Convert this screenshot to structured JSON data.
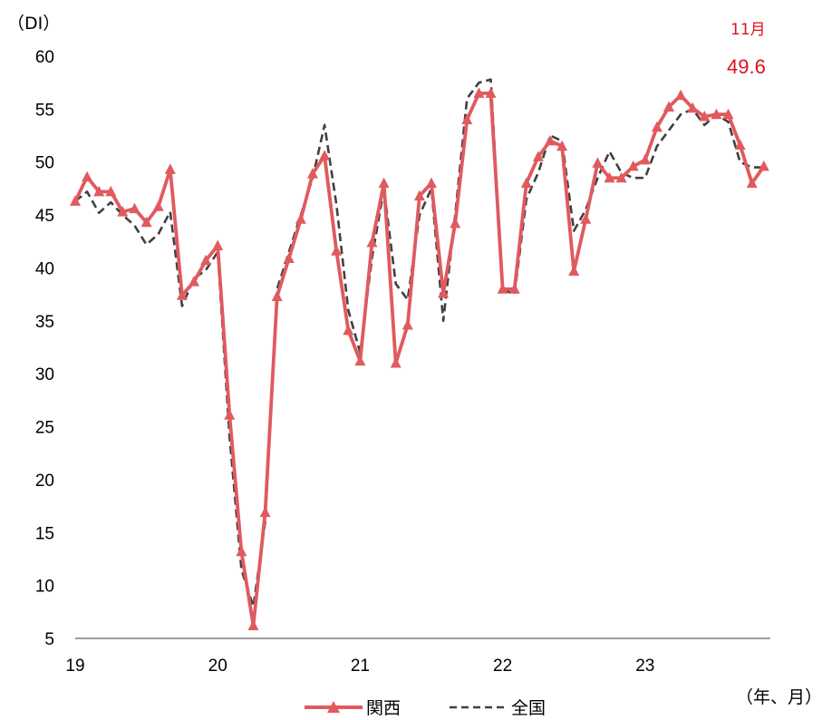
{
  "chart_data": {
    "type": "line",
    "y_unit": "（DI）",
    "x_unit": "（年、月）",
    "ylim": [
      5,
      60
    ],
    "y_ticks": [
      "5",
      "10",
      "15",
      "20",
      "25",
      "30",
      "35",
      "40",
      "45",
      "50",
      "55",
      "60"
    ],
    "x_ticks": [
      {
        "label": "19",
        "index": 0
      },
      {
        "label": "20",
        "index": 12
      },
      {
        "label": "21",
        "index": 24
      },
      {
        "label": "22",
        "index": 36
      },
      {
        "label": "23",
        "index": 48
      }
    ],
    "grid": false,
    "legend_position": "bottom",
    "annotation": {
      "month": "11月",
      "value": "49.6"
    },
    "series": [
      {
        "name": "関西",
        "color": "#e05a5e",
        "style": "solid-triangle",
        "values": [
          46.3,
          48.6,
          47.2,
          47.2,
          45.3,
          45.6,
          44.3,
          45.8,
          49.3,
          37.4,
          38.7,
          40.7,
          42.1,
          26.1,
          13.2,
          6.2,
          16.9,
          37.3,
          40.9,
          44.6,
          48.9,
          50.6,
          41.6,
          34.1,
          31.2,
          42.4,
          48.0,
          31.0,
          34.6,
          46.8,
          48.0,
          37.6,
          44.2,
          54.0,
          56.5,
          56.5,
          38.0,
          38.0,
          48.0,
          50.5,
          52.0,
          51.5,
          39.7,
          44.6,
          49.9,
          48.5,
          48.5,
          49.6,
          50.2,
          53.3,
          55.2,
          56.3,
          55.1,
          54.3,
          54.5,
          54.5,
          51.6,
          48.0,
          49.6
        ]
      },
      {
        "name": "全国",
        "color": "#404040",
        "style": "dashed",
        "values": [
          46.3,
          47.2,
          45.2,
          46.2,
          45.0,
          44.0,
          42.2,
          43.2,
          45.3,
          36.4,
          39.0,
          39.8,
          41.5,
          24.0,
          11.5,
          8.0,
          16.0,
          38.0,
          41.5,
          45.0,
          48.5,
          53.5,
          46.0,
          36.0,
          32.0,
          41.0,
          47.5,
          38.5,
          37.0,
          45.0,
          47.5,
          35.0,
          45.0,
          56.0,
          57.5,
          57.8,
          38.0,
          37.5,
          46.5,
          49.0,
          52.5,
          52.0,
          43.5,
          45.5,
          48.5,
          51.0,
          49.0,
          48.5,
          48.5,
          51.5,
          53.0,
          54.5,
          55.0,
          53.5,
          54.5,
          53.8,
          50.0,
          49.5,
          49.5
        ]
      }
    ]
  }
}
